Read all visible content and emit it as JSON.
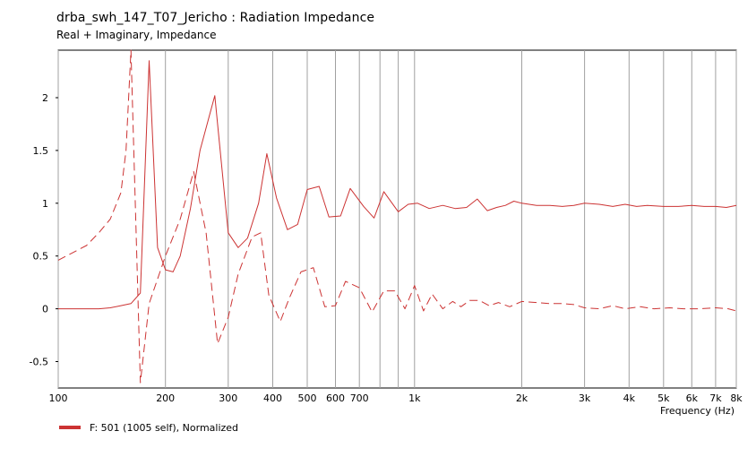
{
  "chart_data": {
    "type": "line",
    "title": "drba_swh_147_T07_Jericho : Radiation Impedance",
    "subtitle": "Real + Imaginary, Impedance",
    "xlabel": "Frequency  (Hz)",
    "ylabel": "",
    "x_scale": "log",
    "xlim": [
      100,
      8000
    ],
    "ylim": [
      -0.75,
      2.45
    ],
    "x_ticks": [
      100,
      200,
      300,
      400,
      500,
      600,
      700,
      1000,
      2000,
      3000,
      4000,
      5000,
      6000,
      7000,
      8000
    ],
    "x_tick_labels": [
      "100",
      "200",
      "300",
      "400",
      "500",
      "600",
      "700",
      "1k",
      "2k",
      "3k",
      "4k",
      "5k",
      "6k",
      "7k",
      "8k"
    ],
    "x_minor_ticks": [
      800,
      900
    ],
    "y_ticks": [
      -0.5,
      0,
      0.5,
      1,
      1.5,
      2
    ],
    "y_tick_labels": [
      "-0.5",
      "0",
      "0.5",
      "1",
      "1.5",
      "2"
    ],
    "grid": true,
    "legend_position": "bottom-left",
    "series": [
      {
        "name": "F: 501 (1005 self), Normalized",
        "color": "#cc3333",
        "dash": "solid",
        "x": [
          100,
          120,
          130,
          140,
          150,
          160,
          170,
          180,
          190,
          200,
          210,
          220,
          235,
          250,
          275,
          300,
          320,
          340,
          365,
          385,
          410,
          440,
          470,
          500,
          540,
          575,
          620,
          660,
          720,
          770,
          820,
          900,
          960,
          1020,
          1100,
          1200,
          1300,
          1400,
          1500,
          1600,
          1700,
          1800,
          1900,
          2000,
          2200,
          2400,
          2600,
          2800,
          3000,
          3300,
          3600,
          3900,
          4200,
          4500,
          5000,
          5500,
          6000,
          6500,
          7000,
          7500,
          8000
        ],
        "y": [
          0.0,
          0.0,
          0.0,
          0.01,
          0.03,
          0.05,
          0.15,
          2.35,
          0.58,
          0.37,
          0.35,
          0.5,
          0.95,
          1.5,
          2.02,
          0.72,
          0.58,
          0.67,
          1.0,
          1.47,
          1.05,
          0.75,
          0.8,
          1.13,
          1.16,
          0.87,
          0.88,
          1.14,
          0.97,
          0.86,
          1.11,
          0.92,
          0.99,
          1.0,
          0.95,
          0.98,
          0.95,
          0.96,
          1.04,
          0.93,
          0.96,
          0.98,
          1.02,
          1.0,
          0.98,
          0.98,
          0.97,
          0.98,
          1.0,
          0.99,
          0.97,
          0.99,
          0.97,
          0.98,
          0.97,
          0.97,
          0.98,
          0.97,
          0.97,
          0.96,
          0.98
        ]
      },
      {
        "name": "",
        "color": "#cc3333",
        "dash": "dashed",
        "x": [
          100,
          120,
          130,
          140,
          150,
          155,
          160,
          170,
          180,
          200,
          220,
          240,
          260,
          280,
          300,
          320,
          350,
          370,
          390,
          420,
          445,
          480,
          520,
          560,
          600,
          640,
          700,
          760,
          820,
          880,
          940,
          1000,
          1060,
          1120,
          1200,
          1280,
          1350,
          1430,
          1520,
          1620,
          1720,
          1850,
          2000,
          2200,
          2400,
          2600,
          2800,
          3000,
          3300,
          3600,
          3900,
          4300,
          4700,
          5200,
          5700,
          6300,
          7000,
          7600,
          8000
        ],
        "y": [
          0.46,
          0.6,
          0.72,
          0.85,
          1.1,
          1.5,
          2.45,
          -0.7,
          0.05,
          0.5,
          0.85,
          1.3,
          0.72,
          -0.33,
          -0.08,
          0.33,
          0.68,
          0.72,
          0.13,
          -0.12,
          0.1,
          0.35,
          0.39,
          0.02,
          0.03,
          0.26,
          0.2,
          -0.03,
          0.17,
          0.17,
          0.0,
          0.22,
          -0.02,
          0.14,
          0.0,
          0.07,
          0.02,
          0.08,
          0.08,
          0.03,
          0.06,
          0.02,
          0.07,
          0.06,
          0.05,
          0.05,
          0.04,
          0.01,
          0.0,
          0.03,
          0.0,
          0.02,
          0.0,
          0.01,
          0.0,
          0.0,
          0.01,
          0.0,
          -0.02
        ]
      }
    ]
  }
}
